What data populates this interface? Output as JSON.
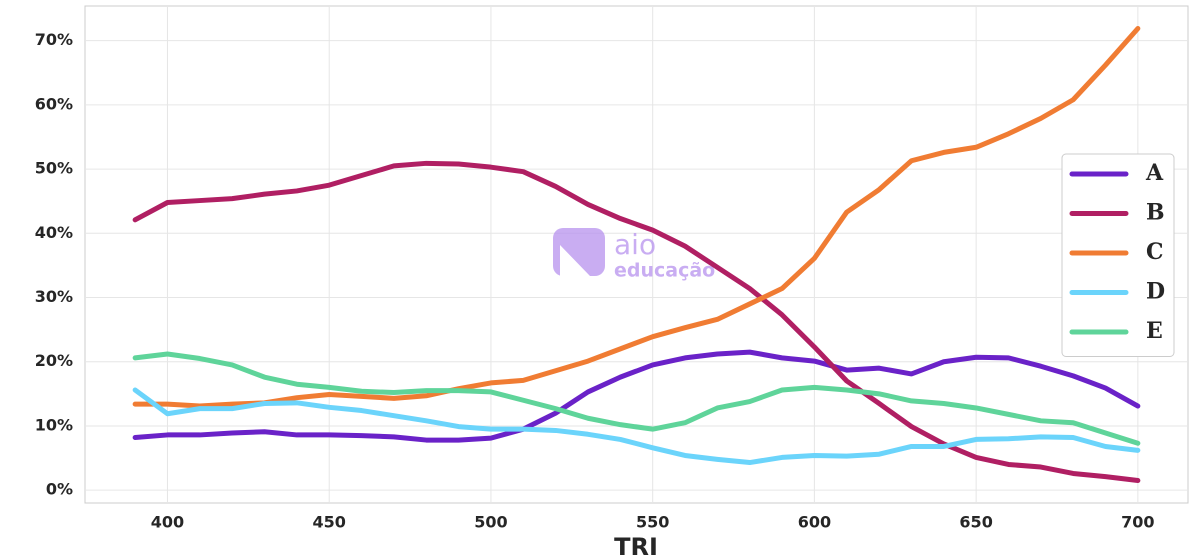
{
  "chart_data": {
    "type": "line",
    "xlabel": "TRI",
    "watermark": [
      "aio",
      "educação"
    ],
    "x": [
      390,
      400,
      410,
      420,
      430,
      440,
      450,
      460,
      470,
      480,
      490,
      500,
      510,
      520,
      530,
      540,
      550,
      560,
      570,
      580,
      590,
      600,
      610,
      620,
      630,
      640,
      650,
      660,
      670,
      680,
      690,
      700
    ],
    "series": [
      {
        "name": "A",
        "color": "#6a22c8",
        "values": [
          8.2,
          8.6,
          8.6,
          8.9,
          9.1,
          8.6,
          8.6,
          8.5,
          8.3,
          7.8,
          7.8,
          8.1,
          9.5,
          12.0,
          15.3,
          17.6,
          19.5,
          20.6,
          21.2,
          21.5,
          20.6,
          20.1,
          18.7,
          19.0,
          18.1,
          20.0,
          20.7,
          20.6,
          19.3,
          17.8,
          15.9,
          13.1
        ]
      },
      {
        "name": "B",
        "color": "#b01f63",
        "values": [
          42.1,
          44.8,
          45.1,
          45.4,
          46.1,
          46.6,
          47.5,
          49.0,
          50.5,
          50.9,
          50.8,
          50.3,
          49.6,
          47.3,
          44.5,
          42.3,
          40.5,
          38.0,
          34.7,
          31.4,
          27.3,
          22.3,
          17.0,
          13.5,
          9.9,
          7.2,
          5.1,
          4.0,
          3.6,
          2.6,
          2.1,
          1.5
        ]
      },
      {
        "name": "C",
        "color": "#f07c33",
        "values": [
          13.4,
          13.4,
          13.1,
          13.4,
          13.6,
          14.4,
          14.9,
          14.6,
          14.3,
          14.7,
          15.8,
          16.7,
          17.1,
          18.6,
          20.1,
          22.0,
          23.9,
          25.3,
          26.6,
          29.0,
          31.4,
          36.1,
          43.3,
          46.8,
          51.3,
          52.6,
          53.4,
          55.5,
          57.9,
          60.8,
          66.2,
          71.9
        ]
      },
      {
        "name": "D",
        "color": "#6bd4fb",
        "values": [
          15.6,
          11.9,
          12.7,
          12.7,
          13.5,
          13.6,
          12.9,
          12.4,
          11.6,
          10.8,
          9.9,
          9.5,
          9.5,
          9.3,
          8.7,
          7.9,
          6.6,
          5.4,
          4.8,
          4.3,
          5.1,
          5.4,
          5.3,
          5.6,
          6.8,
          6.8,
          7.9,
          8.0,
          8.3,
          8.2,
          6.8,
          6.2
        ]
      },
      {
        "name": "E",
        "color": "#5fd49a",
        "values": [
          20.6,
          21.2,
          20.5,
          19.5,
          17.6,
          16.5,
          16.0,
          15.4,
          15.2,
          15.5,
          15.5,
          15.3,
          14.0,
          12.7,
          11.2,
          10.2,
          9.5,
          10.5,
          12.8,
          13.8,
          15.6,
          16.0,
          15.6,
          15.0,
          13.9,
          13.5,
          12.8,
          11.8,
          10.8,
          10.5,
          8.9,
          7.3
        ]
      }
    ],
    "xlim": [
      374.5,
      715.5
    ],
    "ylim": [
      -2,
      75.4
    ],
    "xticks": [
      400,
      450,
      500,
      550,
      600,
      650,
      700
    ],
    "yticks": [
      {
        "value": 0,
        "label": "0%"
      },
      {
        "value": 10,
        "label": "10%"
      },
      {
        "value": 20,
        "label": "20%"
      },
      {
        "value": 30,
        "label": "30%"
      },
      {
        "value": 40,
        "label": "40%"
      },
      {
        "value": 50,
        "label": "50%"
      },
      {
        "value": 60,
        "label": "60%"
      },
      {
        "value": 70,
        "label": "70%"
      }
    ],
    "grid": true,
    "legend": "right"
  }
}
